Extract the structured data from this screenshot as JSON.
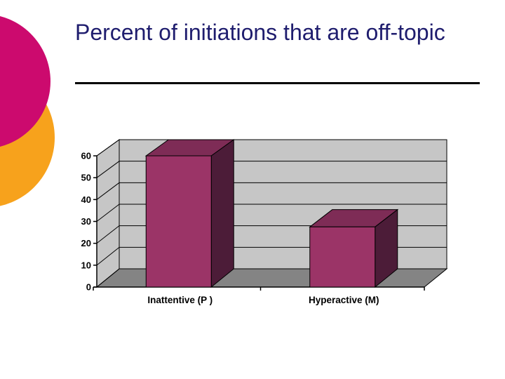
{
  "slide_title": "Percent of initiations that are off-topic",
  "title_color": "#1F1D6E",
  "divider_color": "#000000",
  "decoration": {
    "magenta_circle_color": "#CC0A6E",
    "orange_circle_color": "#F7A21C"
  },
  "chart_data": {
    "type": "bar",
    "effect": "3d",
    "title": "",
    "xlabel": "",
    "ylabel": "",
    "categories": [
      "Inattentive (P )",
      "Hyperactive (M)"
    ],
    "values": [
      60,
      27.5
    ],
    "ylim": [
      0,
      60
    ],
    "ytick_step": 10,
    "ytick_labels": [
      "0",
      "10",
      "20",
      "30",
      "40",
      "50",
      "60"
    ],
    "grid": true,
    "legend": false,
    "colors": {
      "bar_front": "#9B3467",
      "bar_top": "#7E2C56",
      "bar_side": "#4C1C38",
      "wall": "#C6C6C6",
      "floor": "#848484",
      "line": "#000000",
      "tick_text": "#000000"
    }
  }
}
